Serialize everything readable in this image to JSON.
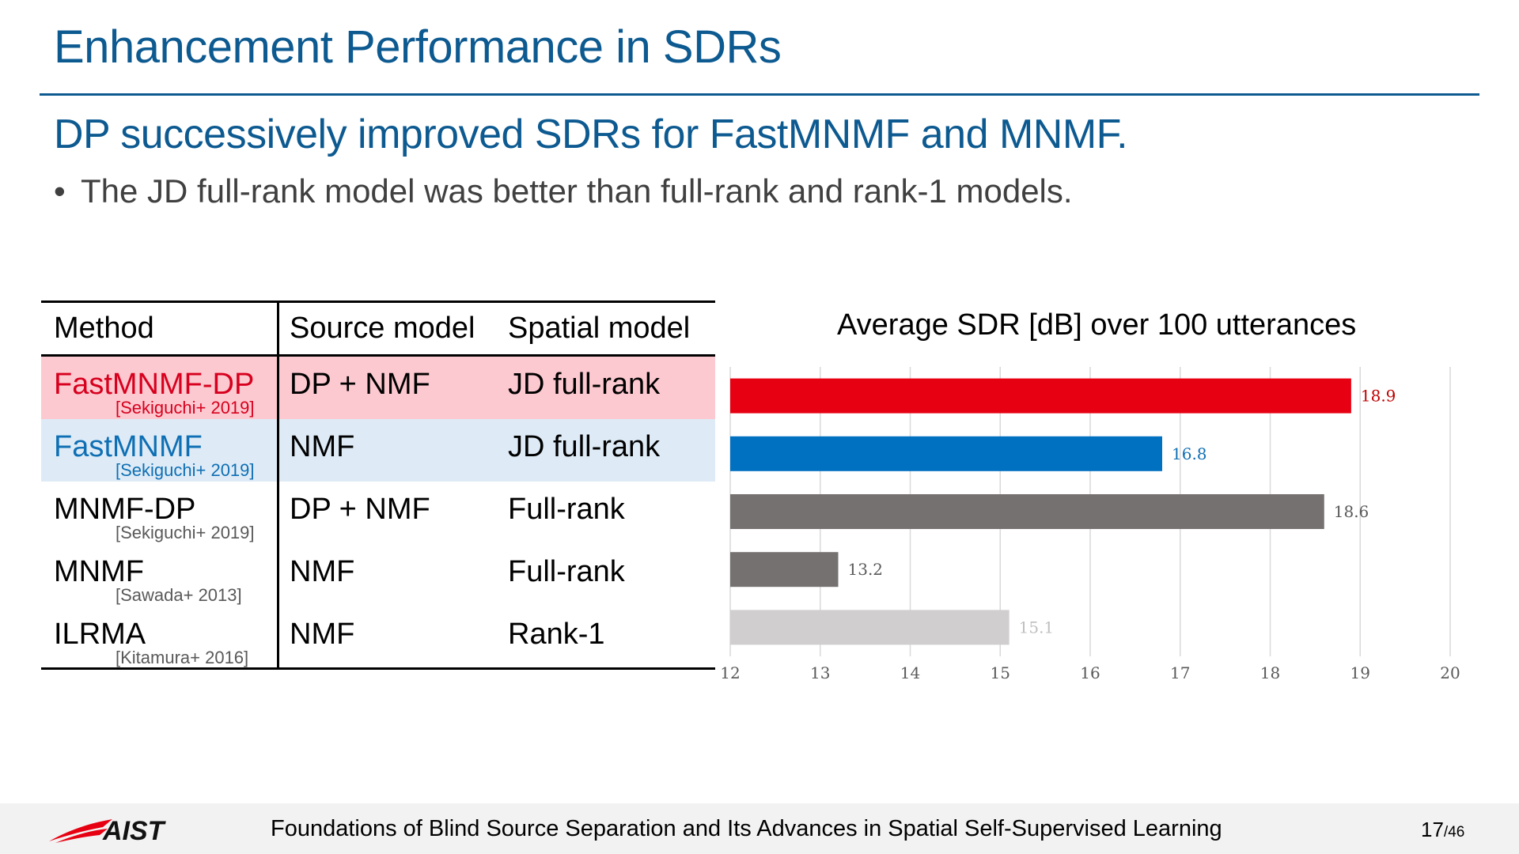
{
  "slide": {
    "title": "Enhancement Performance in SDRs",
    "subtitle": "DP successively improved SDRs for FastMNMF and MNMF.",
    "bullet": "The JD full-rank model was better than full-rank and rank-1 models."
  },
  "table": {
    "headers": [
      "Method",
      "Source model",
      "Spatial model"
    ],
    "rows": [
      {
        "method": "FastMNMF-DP",
        "citation": "[Sekiguchi+ 2019]",
        "source": "DP + NMF",
        "spatial": "JD full-rank",
        "bg": "#fdc9d0",
        "method_color": "#d7001e",
        "cite_color": "#d7001e"
      },
      {
        "method": "FastMNMF",
        "citation": "[Sekiguchi+ 2019]",
        "source": "NMF",
        "spatial": "JD full-rank",
        "bg": "#deebf6",
        "method_color": "#0f6fb4",
        "cite_color": "#0f6fb4"
      },
      {
        "method": "MNMF-DP",
        "citation": "[Sekiguchi+ 2019]",
        "source": "DP + NMF",
        "spatial": "Full-rank",
        "bg": "#ffffff",
        "method_color": "#000000",
        "cite_color": "#595959"
      },
      {
        "method": "MNMF",
        "citation": "[Sawada+ 2013]",
        "source": "NMF",
        "spatial": "Full-rank",
        "bg": "#ffffff",
        "method_color": "#000000",
        "cite_color": "#595959"
      },
      {
        "method": "ILRMA",
        "citation": "[Kitamura+ 2016]",
        "source": "NMF",
        "spatial": "Rank-1",
        "bg": "#ffffff",
        "method_color": "#000000",
        "cite_color": "#595959"
      }
    ]
  },
  "chart_data": {
    "type": "bar",
    "orientation": "horizontal",
    "title": "Average SDR [dB] over 100 utterances",
    "categories": [
      "FastMNMF-DP",
      "FastMNMF",
      "MNMF-DP",
      "MNMF",
      "ILRMA"
    ],
    "values": [
      18.9,
      16.8,
      18.6,
      13.2,
      15.1
    ],
    "value_labels": [
      "18.9",
      "16.8",
      "18.6",
      "13.2",
      "15.1"
    ],
    "colors": [
      "#e60012",
      "#0070c0",
      "#767171",
      "#767171",
      "#d0cece"
    ],
    "label_colors": [
      "#c00000",
      "#0f6fb4",
      "#595959",
      "#595959",
      "#bfbfbf"
    ],
    "xlim": [
      12,
      20
    ],
    "xticks": [
      "12",
      "13",
      "14",
      "15",
      "16",
      "17",
      "18",
      "19",
      "20"
    ],
    "grid": true,
    "xlabel": "",
    "ylabel": ""
  },
  "footer": {
    "logo_text": "AIST",
    "text": "Foundations of Blind Source Separation and Its Advances in Spatial Self-Supervised Learning",
    "page": "17",
    "total": "/46"
  }
}
